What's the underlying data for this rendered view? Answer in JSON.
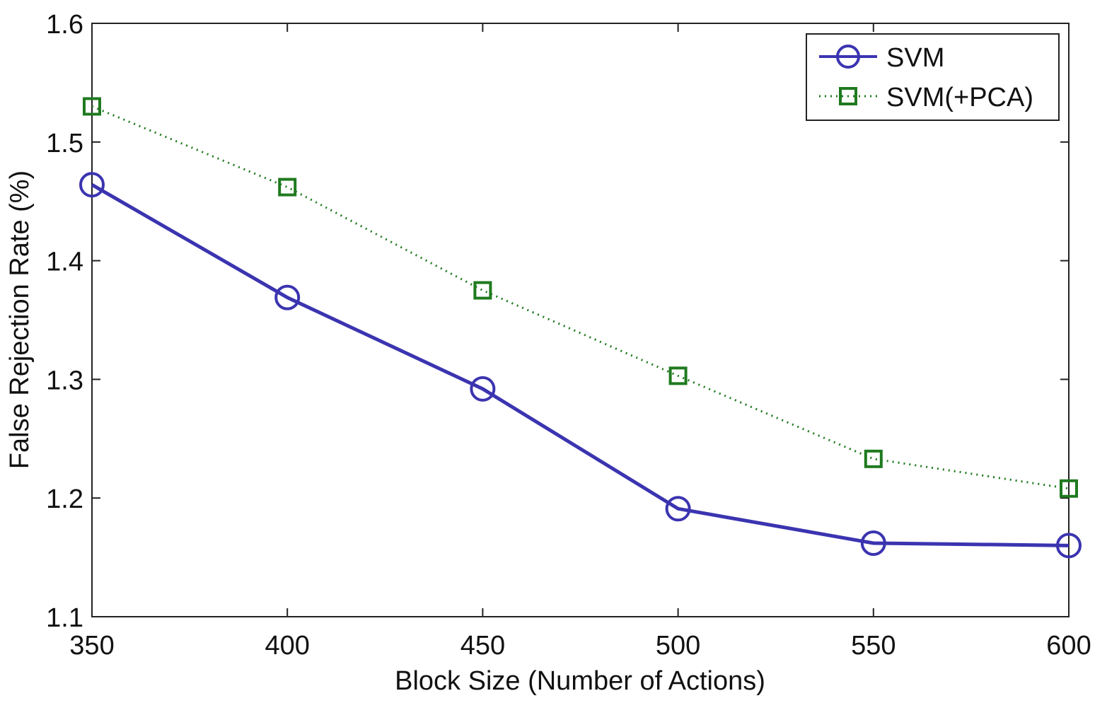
{
  "chart_data": {
    "type": "line",
    "title": "",
    "xlabel": "Block Size (Number of Actions)",
    "ylabel": "False Rejection Rate (%)",
    "xlim": [
      350,
      600
    ],
    "ylim": [
      1.1,
      1.6
    ],
    "x": [
      350,
      400,
      450,
      500,
      550,
      600
    ],
    "xticks": [
      "350",
      "400",
      "450",
      "500",
      "550",
      "600"
    ],
    "yticks": [
      "1.1",
      "1.2",
      "1.3",
      "1.4",
      "1.5",
      "1.6"
    ],
    "grid": false,
    "legend_position": "top-right",
    "series": [
      {
        "name": "SVM",
        "values": [
          1.464,
          1.369,
          1.292,
          1.191,
          1.162,
          1.16
        ],
        "color": "#3b34b0",
        "marker": "circle",
        "line": "solid"
      },
      {
        "name": "SVM(+PCA)",
        "values": [
          1.53,
          1.462,
          1.375,
          1.303,
          1.233,
          1.208
        ],
        "color": "#1f7a1f",
        "marker": "square",
        "line": "dotted"
      }
    ]
  }
}
